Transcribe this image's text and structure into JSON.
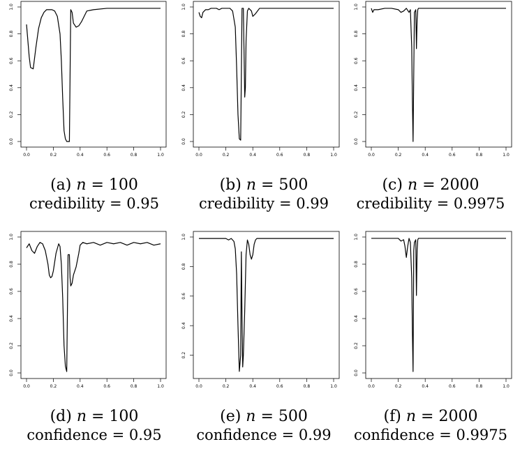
{
  "charts": [
    {
      "caption_label": "(a)",
      "n": "100",
      "metric": "credibility",
      "level": "0.95",
      "chart_data": {
        "type": "line",
        "xlim": [
          0,
          1
        ],
        "ylim": [
          0,
          1
        ],
        "xticks": [
          "0.0",
          "0.2",
          "0.4",
          "0.6",
          "0.8",
          "1.0"
        ],
        "yticks": [
          "0.0",
          "0.2",
          "0.4",
          "0.6",
          "0.8",
          "1.0"
        ],
        "grid": false,
        "series": [
          {
            "x": [
              0.0,
              0.02,
              0.03,
              0.05,
              0.07,
              0.09,
              0.11,
              0.13,
              0.15,
              0.17,
              0.19,
              0.21,
              0.23,
              0.25,
              0.26,
              0.27,
              0.28,
              0.29,
              0.3,
              0.31,
              0.32,
              0.325,
              0.33,
              0.34,
              0.35,
              0.37,
              0.39,
              0.41,
              0.43,
              0.45,
              0.5,
              0.6,
              0.7,
              0.8,
              0.9,
              1.0
            ],
            "y": [
              0.87,
              0.63,
              0.55,
              0.54,
              0.7,
              0.84,
              0.92,
              0.96,
              0.98,
              0.98,
              0.98,
              0.97,
              0.93,
              0.8,
              0.6,
              0.32,
              0.08,
              0.02,
              0.0,
              0.0,
              0.0,
              0.5,
              0.98,
              0.96,
              0.88,
              0.85,
              0.86,
              0.89,
              0.93,
              0.97,
              0.98,
              0.99,
              0.99,
              0.99,
              0.99,
              0.99
            ]
          }
        ]
      }
    },
    {
      "caption_label": "(b)",
      "n": "500",
      "metric": "credibility",
      "level": "0.99",
      "chart_data": {
        "type": "line",
        "xlim": [
          0,
          1
        ],
        "ylim": [
          0,
          1
        ],
        "xticks": [
          "0.0",
          "0.2",
          "0.4",
          "0.6",
          "0.8",
          "1.0"
        ],
        "yticks": [
          "0.0",
          "0.2",
          "0.4",
          "0.6",
          "0.8",
          "1.0"
        ],
        "grid": false,
        "series": [
          {
            "x": [
              0.0,
              0.01,
              0.02,
              0.03,
              0.05,
              0.07,
              0.09,
              0.11,
              0.13,
              0.15,
              0.17,
              0.19,
              0.21,
              0.23,
              0.25,
              0.27,
              0.28,
              0.29,
              0.3,
              0.31,
              0.315,
              0.32,
              0.33,
              0.34,
              0.345,
              0.35,
              0.36,
              0.37,
              0.38,
              0.39,
              0.4,
              0.42,
              0.45,
              0.5,
              0.6,
              0.7,
              0.8,
              0.9,
              1.0
            ],
            "y": [
              0.96,
              0.93,
              0.92,
              0.96,
              0.98,
              0.98,
              0.99,
              0.99,
              0.99,
              0.98,
              0.99,
              0.99,
              0.99,
              0.99,
              0.97,
              0.85,
              0.55,
              0.2,
              0.02,
              0.01,
              0.5,
              0.99,
              0.99,
              0.33,
              0.4,
              0.75,
              0.97,
              0.99,
              0.98,
              0.97,
              0.93,
              0.95,
              0.99,
              0.99,
              0.99,
              0.99,
              0.99,
              0.99,
              0.99
            ]
          }
        ]
      }
    },
    {
      "caption_label": "(c)",
      "n": "2000",
      "metric": "credibility",
      "level": "0.9975",
      "chart_data": {
        "type": "line",
        "xlim": [
          0,
          1
        ],
        "ylim": [
          0,
          1
        ],
        "xticks": [
          "0.0",
          "0.2",
          "0.4",
          "0.6",
          "0.8",
          "1.0"
        ],
        "yticks": [
          "0.0",
          "0.2",
          "0.4",
          "0.6",
          "0.8",
          "1.0"
        ],
        "grid": false,
        "series": [
          {
            "x": [
              0.0,
              0.01,
              0.02,
              0.05,
              0.1,
              0.15,
              0.2,
              0.22,
              0.24,
              0.26,
              0.28,
              0.29,
              0.3,
              0.305,
              0.31,
              0.315,
              0.32,
              0.33,
              0.335,
              0.34,
              0.345,
              0.35,
              0.37,
              0.4,
              0.5,
              0.6,
              0.7,
              0.8,
              0.9,
              1.0
            ],
            "y": [
              0.99,
              0.96,
              0.98,
              0.98,
              0.99,
              0.99,
              0.98,
              0.96,
              0.97,
              0.99,
              0.96,
              0.98,
              0.7,
              0.3,
              0.0,
              0.5,
              0.96,
              0.98,
              0.69,
              0.9,
              0.98,
              0.99,
              0.99,
              0.99,
              0.99,
              0.99,
              0.99,
              0.99,
              0.99,
              0.99
            ]
          }
        ]
      }
    },
    {
      "caption_label": "(d)",
      "n": "100",
      "metric": "confidence",
      "level": "0.95",
      "chart_data": {
        "type": "line",
        "xlim": [
          0,
          1
        ],
        "ylim": [
          0,
          1
        ],
        "xticks": [
          "0.0",
          "0.2",
          "0.4",
          "0.6",
          "0.8",
          "1.0"
        ],
        "yticks": [
          "0.0",
          "0.2",
          "0.4",
          "0.6",
          "0.8",
          "1.0"
        ],
        "grid": false,
        "series": [
          {
            "x": [
              0.0,
              0.02,
              0.04,
              0.06,
              0.08,
              0.1,
              0.12,
              0.14,
              0.16,
              0.17,
              0.18,
              0.19,
              0.2,
              0.22,
              0.24,
              0.25,
              0.26,
              0.27,
              0.28,
              0.29,
              0.3,
              0.31,
              0.32,
              0.325,
              0.33,
              0.34,
              0.35,
              0.37,
              0.39,
              0.4,
              0.42,
              0.45,
              0.5,
              0.55,
              0.6,
              0.65,
              0.7,
              0.75,
              0.8,
              0.85,
              0.9,
              0.95,
              1.0
            ],
            "y": [
              0.92,
              0.95,
              0.9,
              0.88,
              0.93,
              0.96,
              0.95,
              0.9,
              0.8,
              0.72,
              0.7,
              0.71,
              0.75,
              0.88,
              0.95,
              0.93,
              0.8,
              0.55,
              0.2,
              0.05,
              0.01,
              0.87,
              0.87,
              0.7,
              0.64,
              0.66,
              0.72,
              0.78,
              0.88,
              0.94,
              0.96,
              0.95,
              0.96,
              0.94,
              0.96,
              0.95,
              0.96,
              0.94,
              0.96,
              0.95,
              0.96,
              0.94,
              0.95
            ]
          }
        ]
      }
    },
    {
      "caption_label": "(e)",
      "n": "500",
      "metric": "confidence",
      "level": "0.99",
      "chart_data": {
        "type": "line",
        "xlim": [
          0,
          1
        ],
        "ylim": [
          0.08,
          1
        ],
        "xticks": [
          "0.0",
          "0.2",
          "0.4",
          "0.6",
          "0.8",
          "1.0"
        ],
        "yticks": [
          "0.2",
          "0.4",
          "0.6",
          "0.8",
          "1.0"
        ],
        "grid": false,
        "series": [
          {
            "x": [
              0.0,
              0.05,
              0.1,
              0.15,
              0.2,
              0.22,
              0.24,
              0.26,
              0.27,
              0.28,
              0.29,
              0.3,
              0.31,
              0.315,
              0.32,
              0.325,
              0.33,
              0.34,
              0.35,
              0.36,
              0.37,
              0.38,
              0.39,
              0.4,
              0.41,
              0.42,
              0.43,
              0.45,
              0.5,
              0.6,
              0.7,
              0.8,
              0.9,
              1.0
            ],
            "y": [
              0.99,
              0.99,
              0.99,
              0.99,
              0.99,
              0.98,
              0.99,
              0.97,
              0.92,
              0.75,
              0.4,
              0.09,
              0.2,
              0.9,
              0.45,
              0.12,
              0.2,
              0.5,
              0.88,
              0.98,
              0.95,
              0.88,
              0.85,
              0.88,
              0.95,
              0.98,
              0.99,
              0.99,
              0.99,
              0.99,
              0.99,
              0.99,
              0.99,
              0.99
            ]
          }
        ]
      }
    },
    {
      "caption_label": "(f)",
      "n": "2000",
      "metric": "confidence",
      "level": "0.9975",
      "chart_data": {
        "type": "line",
        "xlim": [
          0,
          1
        ],
        "ylim": [
          0,
          1
        ],
        "xticks": [
          "0.0",
          "0.2",
          "0.4",
          "0.6",
          "0.8",
          "1.0"
        ],
        "yticks": [
          "0.0",
          "0.2",
          "0.4",
          "0.6",
          "0.8",
          "1.0"
        ],
        "grid": false,
        "series": [
          {
            "x": [
              0.0,
              0.05,
              0.1,
              0.15,
              0.2,
              0.22,
              0.24,
              0.25,
              0.26,
              0.27,
              0.28,
              0.29,
              0.3,
              0.305,
              0.31,
              0.315,
              0.32,
              0.33,
              0.335,
              0.34,
              0.345,
              0.35,
              0.37,
              0.4,
              0.5,
              0.6,
              0.7,
              0.8,
              0.9,
              1.0
            ],
            "y": [
              0.99,
              0.99,
              0.99,
              0.99,
              0.99,
              0.97,
              0.98,
              0.93,
              0.85,
              0.93,
              0.99,
              0.96,
              0.7,
              0.3,
              0.01,
              0.9,
              0.96,
              0.98,
              0.57,
              0.9,
              0.98,
              0.99,
              0.99,
              0.99,
              0.99,
              0.99,
              0.99,
              0.99,
              0.99,
              0.99
            ]
          }
        ]
      }
    }
  ]
}
